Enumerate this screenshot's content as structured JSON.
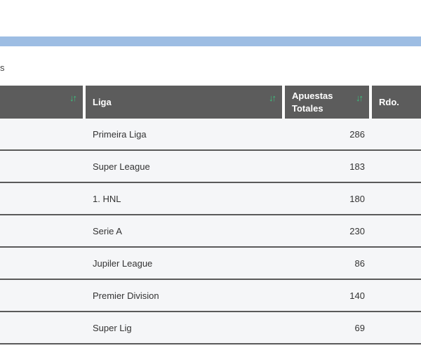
{
  "partial_text": "s",
  "columns": {
    "col0": "",
    "liga": "Liga",
    "apuestas_line1": "Apuestas",
    "apuestas_line2": "Totales",
    "rdo": "Rdo."
  },
  "sort_icon": "sort-up-down-icon",
  "colors": {
    "header_bg": "#5c5c5c",
    "sort_icon": "#3cc27e",
    "top_bar": "#9dbde3"
  },
  "rows": [
    {
      "liga": "Primeira Liga",
      "apuestas": "286",
      "rdo": ""
    },
    {
      "liga": "Super League",
      "apuestas": "183",
      "rdo": ""
    },
    {
      "liga": "1. HNL",
      "apuestas": "180",
      "rdo": ""
    },
    {
      "liga": "Serie A",
      "apuestas": "230",
      "rdo": ""
    },
    {
      "liga": "Jupiler League",
      "apuestas": "86",
      "rdo": ""
    },
    {
      "liga": "Premier Division",
      "apuestas": "140",
      "rdo": ""
    },
    {
      "liga": "Super Lig",
      "apuestas": "69",
      "rdo": ""
    }
  ]
}
